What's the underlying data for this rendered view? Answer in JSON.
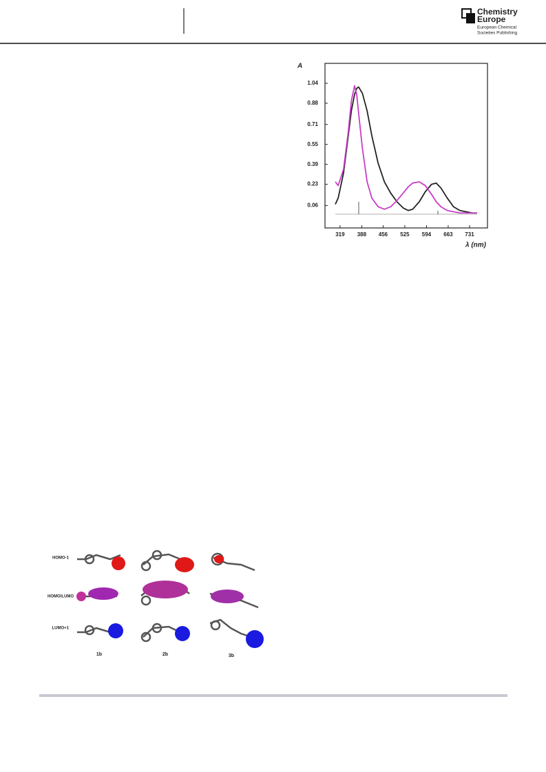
{
  "header": {
    "brand_lines": [
      "Chemistry",
      "Europe",
      "European Chemical",
      "Societies Publishing"
    ]
  },
  "chart_data": {
    "type": "line",
    "ylabel": "A",
    "xlabel": "λ (nm)",
    "x": [
      304,
      313,
      330,
      345,
      355,
      365,
      372,
      378,
      390,
      405,
      420,
      440,
      460,
      480,
      500,
      520,
      536,
      550,
      571,
      590,
      610,
      625,
      640,
      660,
      680,
      700,
      720,
      740,
      755
    ],
    "series": [
      {
        "color": "#222222",
        "values": [
          0.07,
          0.12,
          0.32,
          0.62,
          0.82,
          0.95,
          1.0,
          1.01,
          0.96,
          0.82,
          0.62,
          0.4,
          0.25,
          0.16,
          0.09,
          0.04,
          0.02,
          0.03,
          0.09,
          0.17,
          0.23,
          0.24,
          0.2,
          0.12,
          0.05,
          0.02,
          0.01,
          0.0,
          0.0
        ]
      },
      {
        "color": "#c83cc8",
        "values": [
          0.25,
          0.22,
          0.35,
          0.65,
          0.9,
          1.02,
          0.95,
          0.8,
          0.52,
          0.25,
          0.12,
          0.05,
          0.03,
          0.05,
          0.1,
          0.16,
          0.21,
          0.24,
          0.25,
          0.22,
          0.15,
          0.09,
          0.05,
          0.02,
          0.01,
          0.0,
          0.0,
          0.0,
          0.0
        ]
      }
    ],
    "xlim": [
      271,
      788
    ],
    "ylim": [
      -0.12,
      1.2
    ],
    "xticks": [
      319,
      388,
      456,
      525,
      594,
      663,
      731
    ],
    "yticks": [
      0.06,
      0.23,
      0.39,
      0.55,
      0.71,
      0.88,
      1.04
    ]
  },
  "figure": {
    "rows": [
      "HOMO-1",
      "HOMO/LUMO",
      "LUMO+1"
    ],
    "columns": [
      "1b",
      "2b",
      "3b"
    ]
  }
}
